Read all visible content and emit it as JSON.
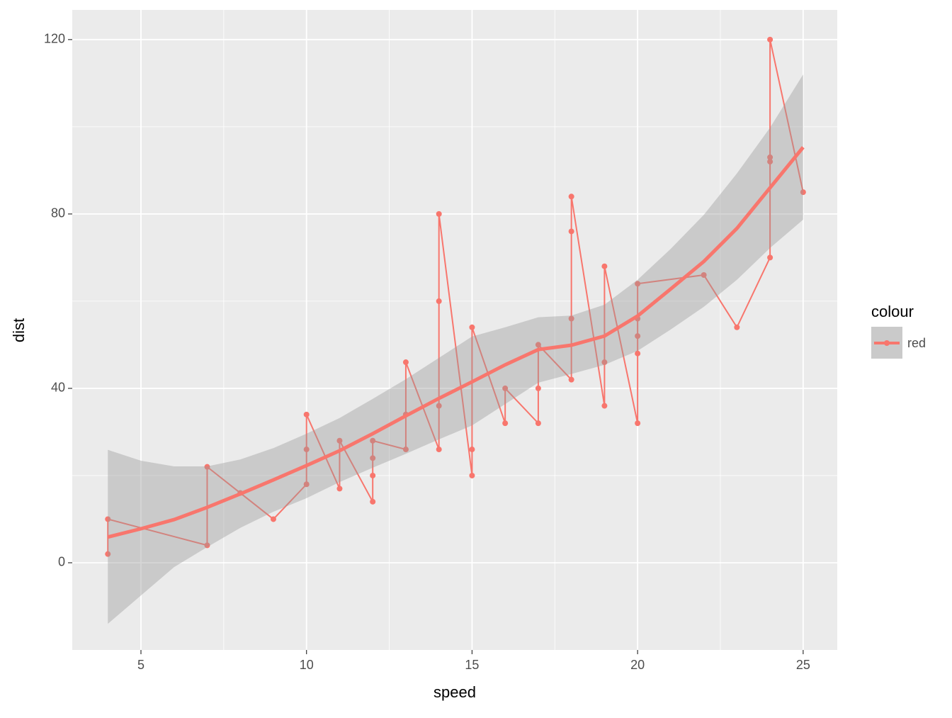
{
  "chart_data": {
    "type": "line",
    "x_label": "speed",
    "y_label": "dist",
    "legend_title": "colour",
    "series": [
      {
        "name": "red",
        "color": "#F8766D",
        "x": [
          4,
          4,
          7,
          7,
          8,
          9,
          10,
          10,
          10,
          11,
          11,
          12,
          12,
          12,
          12,
          13,
          13,
          13,
          13,
          14,
          14,
          14,
          14,
          15,
          15,
          15,
          16,
          16,
          17,
          17,
          17,
          18,
          18,
          18,
          18,
          19,
          19,
          19,
          20,
          20,
          20,
          20,
          20,
          22,
          23,
          24,
          24,
          24,
          24,
          25
        ],
        "values": [
          2,
          10,
          4,
          22,
          16,
          10,
          18,
          26,
          34,
          17,
          28,
          14,
          20,
          24,
          28,
          26,
          34,
          34,
          46,
          26,
          36,
          60,
          80,
          20,
          26,
          54,
          32,
          40,
          32,
          40,
          50,
          42,
          56,
          76,
          84,
          36,
          46,
          68,
          32,
          48,
          52,
          56,
          64,
          66,
          54,
          70,
          92,
          93,
          120,
          85
        ]
      }
    ],
    "smooth": {
      "color": "#F8766D",
      "band_color": "#999999",
      "x": [
        4,
        5,
        6,
        7,
        8,
        9,
        10,
        11,
        12,
        13,
        14,
        15,
        16,
        17,
        18,
        19,
        20,
        21,
        22,
        23,
        24,
        25
      ],
      "values": [
        5.9,
        7.8,
        9.9,
        12.7,
        15.8,
        19,
        22.3,
        25.7,
        29.6,
        33.7,
        37.7,
        41.5,
        45.4,
        48.9,
        49.9,
        52,
        56.6,
        62.8,
        69.1,
        76.7,
        86,
        95.3
      ],
      "lower": [
        -14,
        -7.5,
        -1,
        3.6,
        8,
        11.7,
        14.8,
        18.5,
        21.8,
        25,
        28.3,
        31.5,
        36.4,
        41.3,
        43.3,
        45.4,
        48.6,
        53.5,
        58.7,
        64.9,
        72.2,
        78.7
      ],
      "upper": [
        25.9,
        23.4,
        22.1,
        22.1,
        23.7,
        26.3,
        29.6,
        33.2,
        37.6,
        42.1,
        47,
        51.9,
        54,
        56.3,
        56.7,
        59.2,
        64.9,
        72,
        79.8,
        89.3,
        99.8,
        112
      ]
    },
    "xlim": [
      2.925,
      26.03
    ],
    "ylim": [
      -20,
      126.8
    ],
    "xticks": [
      5,
      10,
      15,
      20,
      25
    ],
    "yticks": [
      0,
      40,
      80,
      120
    ],
    "grid": true
  }
}
